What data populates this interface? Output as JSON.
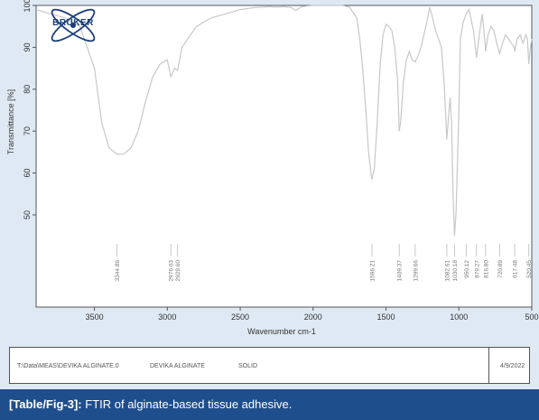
{
  "chart_data": {
    "type": "line",
    "xlabel": "Wavenumber cm-1",
    "ylabel": "Transmittance [%]",
    "xlim": [
      3900,
      500
    ],
    "ylim": [
      28,
      100
    ],
    "x_reversed": true,
    "x_ticks": [
      3500,
      3000,
      2500,
      2000,
      1500,
      1000,
      500
    ],
    "y_ticks": [
      50,
      60,
      70,
      80,
      90,
      100
    ],
    "grid": false,
    "series": [
      {
        "x": [
          3900,
          3800,
          3700,
          3600,
          3500,
          3450,
          3400,
          3344.86,
          3300,
          3250,
          3200,
          3150,
          3100,
          3050,
          3000,
          2976.03,
          2950,
          2929.6,
          2900,
          2800,
          2700,
          2600,
          2500,
          2400,
          2300,
          2250,
          2200,
          2150,
          2120,
          2100,
          2080,
          2050,
          2000,
          1900,
          1800,
          1750,
          1700,
          1680,
          1660,
          1640,
          1620,
          1600,
          1596.21,
          1580,
          1560,
          1540,
          1520,
          1500,
          1480,
          1460,
          1440,
          1420,
          1409.37,
          1400,
          1380,
          1360,
          1340,
          1320,
          1299.66,
          1280,
          1260,
          1240,
          1220,
          1200,
          1180,
          1160,
          1140,
          1120,
          1100,
          1082.61,
          1070,
          1060,
          1050,
          1040,
          1030.18,
          1020,
          1010,
          1000,
          990,
          970,
          950.12,
          930,
          900,
          880,
          879.27,
          860,
          840,
          820,
          816.8,
          800,
          780,
          760,
          740,
          720.89,
          700,
          680,
          660,
          640,
          620,
          617.48,
          600,
          580,
          560,
          540,
          530,
          520.45,
          510,
          500
        ],
        "y": [
          99,
          98,
          97,
          95,
          85,
          72,
          66,
          64.5,
          64.5,
          66,
          70,
          77,
          83,
          86,
          87,
          83,
          85,
          84.5,
          90,
          95,
          97,
          98,
          99,
          99.5,
          99.7,
          99.6,
          99.7,
          99.5,
          98.8,
          99.2,
          99.7,
          99.8,
          100,
          100,
          100,
          99.6,
          97,
          92,
          85,
          76,
          65,
          59,
          58.5,
          61,
          72,
          86,
          93,
          95.5,
          95,
          94,
          90,
          82,
          70,
          72,
          82,
          87,
          89,
          87,
          86.5,
          88,
          90,
          93,
          96,
          99.5,
          97,
          94,
          92,
          90,
          81,
          68,
          74,
          78,
          72,
          55,
          45,
          50,
          62,
          75,
          92,
          96,
          98,
          99,
          94,
          88,
          87.5,
          93,
          98,
          91,
          89,
          93,
          95,
          94,
          91,
          88.5,
          91,
          93,
          92,
          91,
          90,
          89,
          92,
          93,
          91,
          93,
          92,
          86,
          90,
          92
        ]
      }
    ],
    "peak_labels": [
      "3344.86",
      "2976.03",
      "2929.60",
      "1596.21",
      "1409.37",
      "1299.66",
      "1082.61",
      "1030.18",
      "950.12",
      "879.27",
      "816.80",
      "720.89",
      "617.48",
      "520.45"
    ],
    "peak_positions": [
      3344.86,
      2976.03,
      2929.6,
      1596.21,
      1409.37,
      1299.66,
      1082.61,
      1030.18,
      950.12,
      879.27,
      816.8,
      720.89,
      617.48,
      520.45
    ]
  },
  "logo": {
    "text": "BRUKER"
  },
  "info_bar": {
    "path": "T:\\Data\\MEAS\\DEVIKA ALGINATE.0",
    "sample": "DEVIKA ALGINATE",
    "state": "SOLID",
    "date": "4/9/2022"
  },
  "caption": {
    "tag": "[Table/Fig-3]:",
    "text": " FTIR of alginate-based tissue adhesive."
  },
  "colors": {
    "background": "#dfe9f4",
    "plot_bg": "#ffffff",
    "line": "#c8c8c8",
    "caption_bg": "#1f4e8c",
    "logo": "#1a3f7a"
  }
}
